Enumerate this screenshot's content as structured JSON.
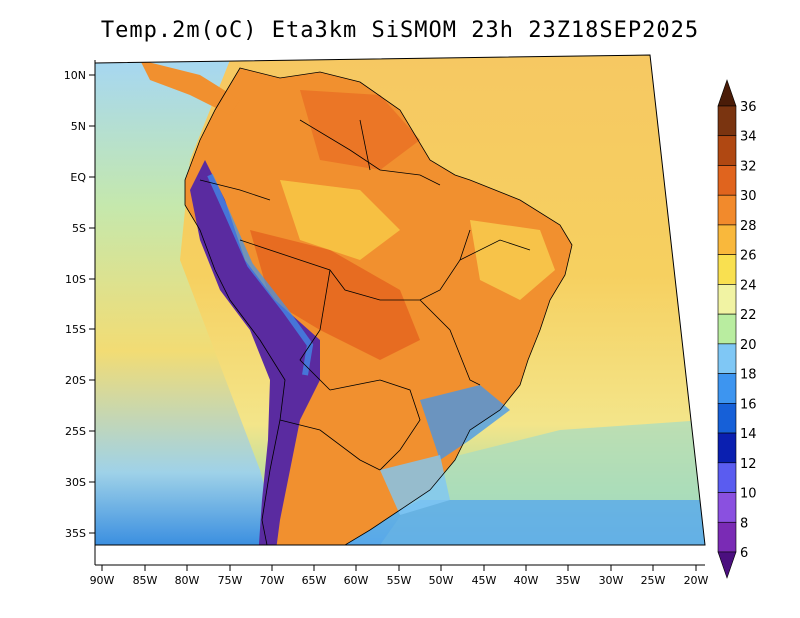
{
  "title": "Temp.2m(oC) Eta3km SiSMOM 23h 23Z18SEP2025",
  "lat_labels": [
    "10N",
    "5N",
    "EQ",
    "5S",
    "10S",
    "15S",
    "20S",
    "25S",
    "30S",
    "35S"
  ],
  "lon_labels": [
    "90W",
    "85W",
    "80W",
    "75W",
    "70W",
    "65W",
    "60W",
    "55W",
    "50W",
    "45W",
    "40W",
    "35W",
    "30W",
    "25W",
    "20W"
  ],
  "colorbar": {
    "labels": [
      "6",
      "8",
      "10",
      "12",
      "14",
      "16",
      "18",
      "20",
      "22",
      "24",
      "26",
      "28",
      "30",
      "32",
      "34",
      "36"
    ],
    "colors": [
      "#4b0f7f",
      "#7a2bb5",
      "#8a50e0",
      "#5a5cf0",
      "#0a1fb0",
      "#1660d8",
      "#3d95f0",
      "#7fc7f5",
      "#b9eda0",
      "#f1f3a3",
      "#f9e050",
      "#f9b83c",
      "#f28a2c",
      "#e0641e",
      "#b04812",
      "#7a3410",
      "#4a1c08"
    ]
  },
  "colors": {
    "ocean_north": "#f6c45a",
    "ocean_south": "#7fc7f5",
    "land_warm": "#f08a2c",
    "andes": "#5a2ba0"
  }
}
